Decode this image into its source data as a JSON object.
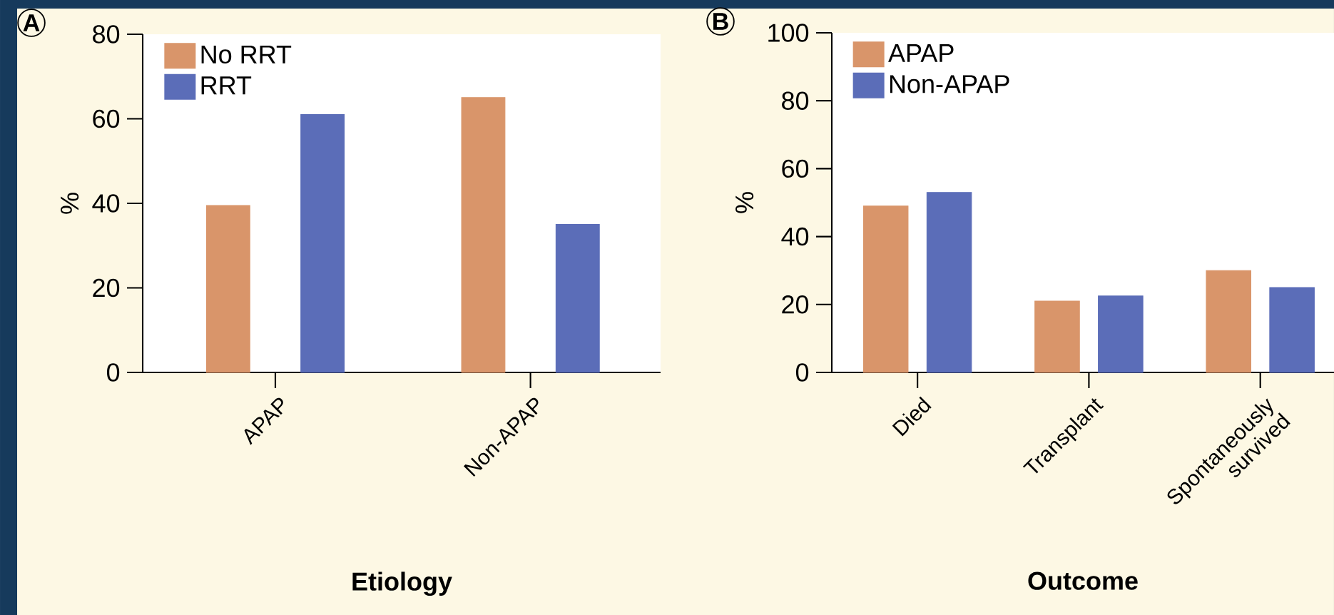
{
  "chart_data": [
    {
      "type": "bar",
      "title": "A",
      "xlabel": "Etiology",
      "ylabel": "%",
      "categories": [
        "APAP",
        "Non-APAP"
      ],
      "ylim": [
        0,
        80
      ],
      "yticks": [
        0,
        20,
        40,
        60,
        80
      ],
      "legend": "top left",
      "series": [
        {
          "name": "No RRT",
          "color": "#d9956a",
          "values": [
            39.5,
            65
          ]
        },
        {
          "name": "RRT",
          "color": "#5b6db8",
          "values": [
            61,
            35
          ]
        }
      ]
    },
    {
      "type": "bar",
      "title": "B",
      "xlabel": "Outcome",
      "ylabel": "%",
      "categories": [
        "Died",
        "Transplant",
        "Spontaneously survived"
      ],
      "ylim": [
        0,
        100
      ],
      "yticks": [
        0,
        20,
        40,
        60,
        80,
        100
      ],
      "legend": "top left",
      "series": [
        {
          "name": "APAP",
          "color": "#d9956a",
          "values": [
            49,
            21,
            30
          ]
        },
        {
          "name": "Non-APAP",
          "color": "#5b6db8",
          "values": [
            53,
            22.5,
            25
          ]
        }
      ]
    }
  ]
}
